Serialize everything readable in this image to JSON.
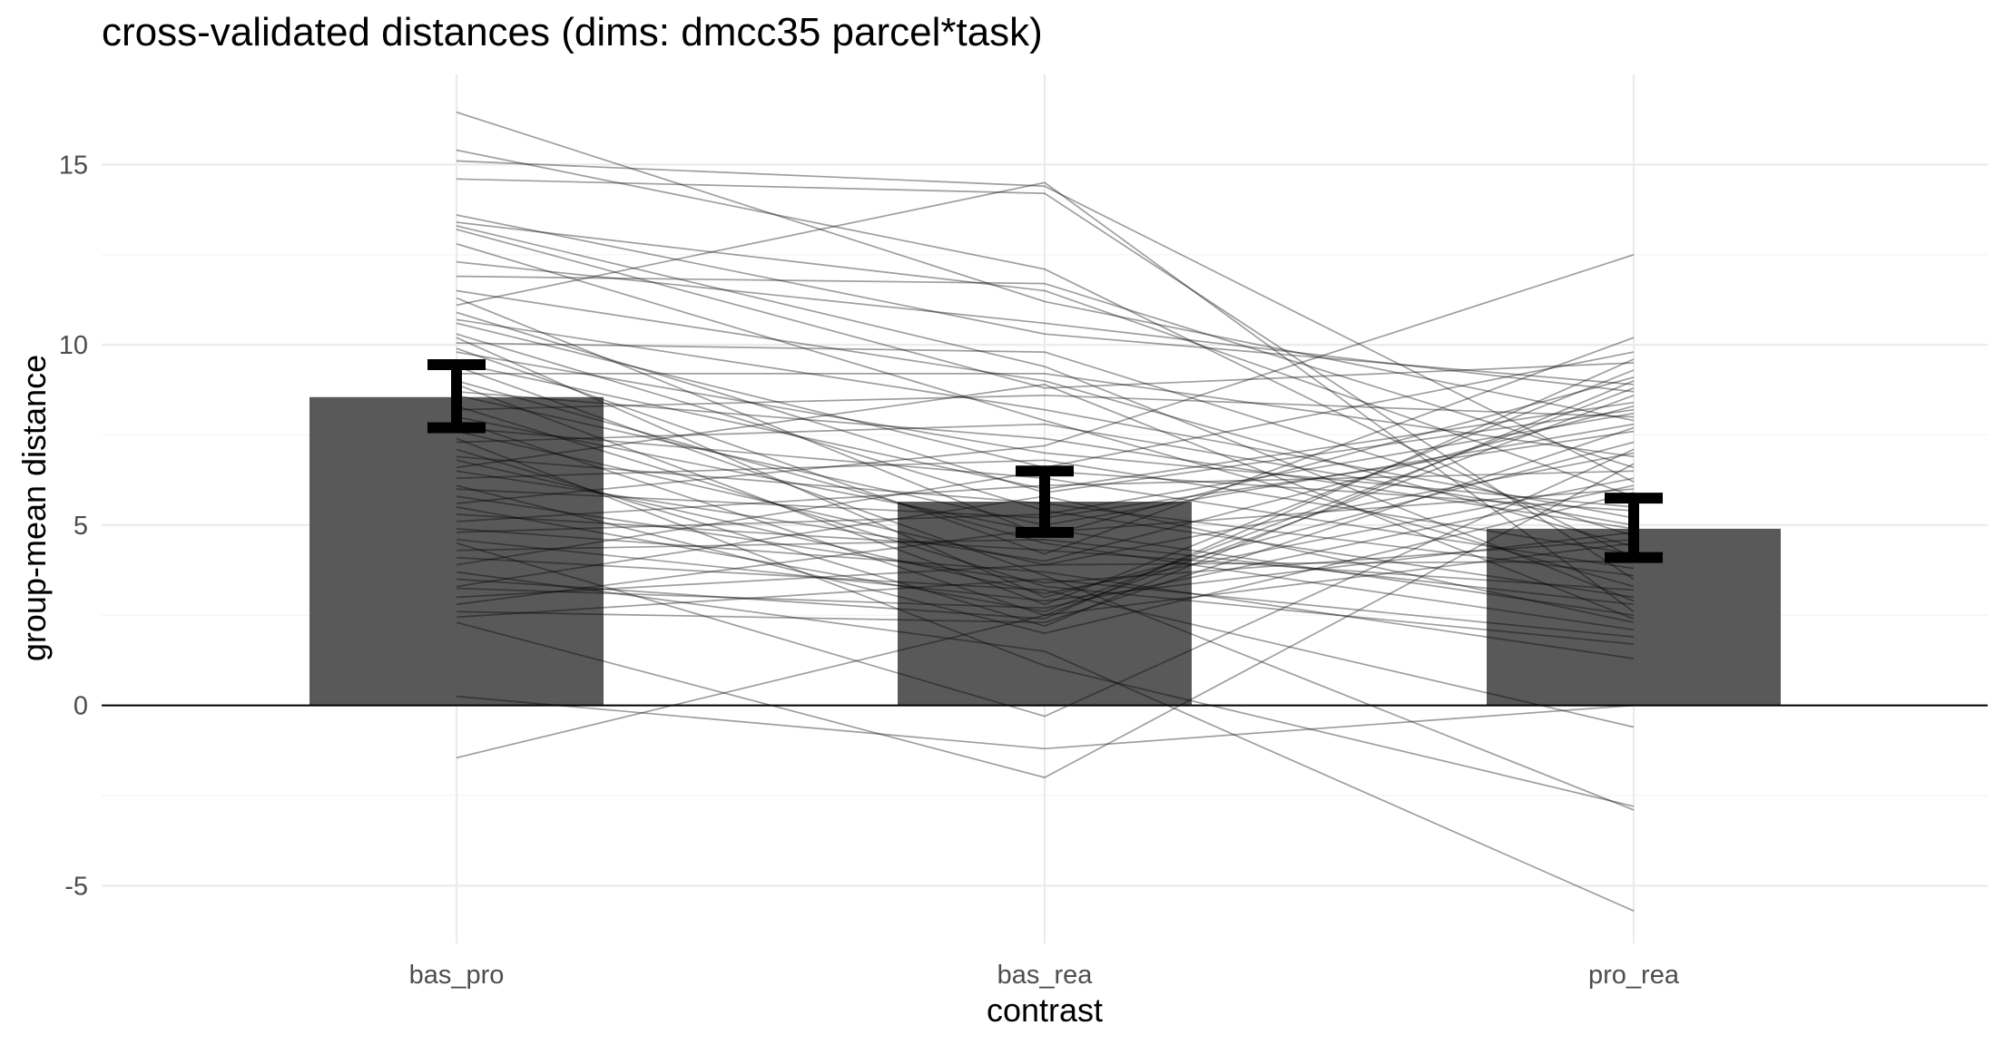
{
  "chart_data": {
    "type": "bar",
    "title": "cross-validated distances (dims: dmcc35 parcel*task)",
    "xlabel": "contrast",
    "ylabel": "group-mean distance",
    "categories": [
      "bas_pro",
      "bas_rea",
      "pro_rea"
    ],
    "ylim": [
      -6.6,
      17.5
    ],
    "yticks": [
      -5,
      0,
      5,
      10,
      15
    ],
    "ytick_labels": [
      "-5",
      "0",
      "5",
      "10",
      "15"
    ],
    "grid": true,
    "legend": "none",
    "reference_line_y": 0,
    "series": [
      {
        "values": [
          8.55,
          5.65,
          4.9
        ]
      }
    ],
    "error_bars": [
      {
        "low": 7.7,
        "high": 9.45
      },
      {
        "low": 4.8,
        "high": 6.5
      },
      {
        "low": 4.1,
        "high": 5.75
      }
    ],
    "subject_lines": [
      [
        16.45,
        11.2,
        7.9
      ],
      [
        15.4,
        12.1,
        4.1
      ],
      [
        15.1,
        14.4,
        6.2
      ],
      [
        14.6,
        14.2,
        3.5
      ],
      [
        13.6,
        10.3,
        8.9
      ],
      [
        13.4,
        11.5,
        5.8
      ],
      [
        13.3,
        9.4,
        2.9
      ],
      [
        13.2,
        8.8,
        9.5
      ],
      [
        12.8,
        7.9,
        3.3
      ],
      [
        12.3,
        10.6,
        8.7
      ],
      [
        11.9,
        11.7,
        6.6
      ],
      [
        11.5,
        9.0,
        4.4
      ],
      [
        11.3,
        4.7,
        9.1
      ],
      [
        11.1,
        14.5,
        2.6
      ],
      [
        10.9,
        5.9,
        8.2
      ],
      [
        10.7,
        8.2,
        5.2
      ],
      [
        10.6,
        6.6,
        9.8
      ],
      [
        10.3,
        5.4,
        3.0
      ],
      [
        10.2,
        3.0,
        7.3
      ],
      [
        10.05,
        9.8,
        4.7
      ],
      [
        9.9,
        4.2,
        10.2
      ],
      [
        9.8,
        7.0,
        5.5
      ],
      [
        9.5,
        6.0,
        8.4
      ],
      [
        9.4,
        3.6,
        -2.9
      ],
      [
        9.2,
        9.2,
        6.9
      ],
      [
        9.0,
        4.5,
        2.1
      ],
      [
        8.9,
        2.8,
        9.3
      ],
      [
        8.7,
        7.4,
        4.9
      ],
      [
        8.6,
        5.0,
        7.8
      ],
      [
        8.3,
        3.3,
        1.7
      ],
      [
        8.2,
        8.6,
        8.0
      ],
      [
        8.0,
        4.8,
        6.0
      ],
      [
        7.9,
        2.5,
        8.6
      ],
      [
        7.7,
        6.3,
        3.8
      ],
      [
        7.6,
        3.9,
        7.0
      ],
      [
        7.4,
        1.1,
        -2.8
      ],
      [
        7.3,
        7.8,
        5.0
      ],
      [
        7.1,
        2.2,
        9.0
      ],
      [
        6.9,
        5.6,
        3.6
      ],
      [
        6.8,
        3.1,
        6.3
      ],
      [
        6.6,
        8.9,
        2.4
      ],
      [
        6.5,
        4.0,
        8.3
      ],
      [
        6.3,
        6.8,
        4.2
      ],
      [
        6.1,
        2.0,
        5.9
      ],
      [
        6.0,
        5.2,
        7.6
      ],
      [
        5.8,
        3.4,
        4.6
      ],
      [
        5.6,
        7.2,
        12.5
      ],
      [
        5.5,
        2.6,
        8.8
      ],
      [
        5.3,
        4.3,
        3.2
      ],
      [
        5.1,
        6.1,
        6.5
      ],
      [
        4.9,
        3.7,
        1.3
      ],
      [
        4.8,
        5.3,
        8.1
      ],
      [
        4.6,
        2.9,
        4.8
      ],
      [
        4.5,
        -0.3,
        7.1
      ],
      [
        4.3,
        4.6,
        2.8
      ],
      [
        4.1,
        3.2,
        -0.6
      ],
      [
        3.9,
        6.5,
        5.4
      ],
      [
        3.7,
        1.5,
        -5.7
      ],
      [
        3.5,
        2.4,
        9.6
      ],
      [
        3.3,
        5.8,
        2.3
      ],
      [
        3.25,
        2.7,
        6.1
      ],
      [
        3.0,
        3.9,
        4.0
      ],
      [
        2.8,
        4.9,
        2.5
      ],
      [
        2.6,
        2.3,
        7.7
      ],
      [
        2.45,
        3.5,
        1.9
      ],
      [
        2.3,
        -2.0,
        6.7
      ],
      [
        0.25,
        -1.2,
        0.0
      ],
      [
        -1.45,
        2.5,
        4.5
      ]
    ]
  }
}
